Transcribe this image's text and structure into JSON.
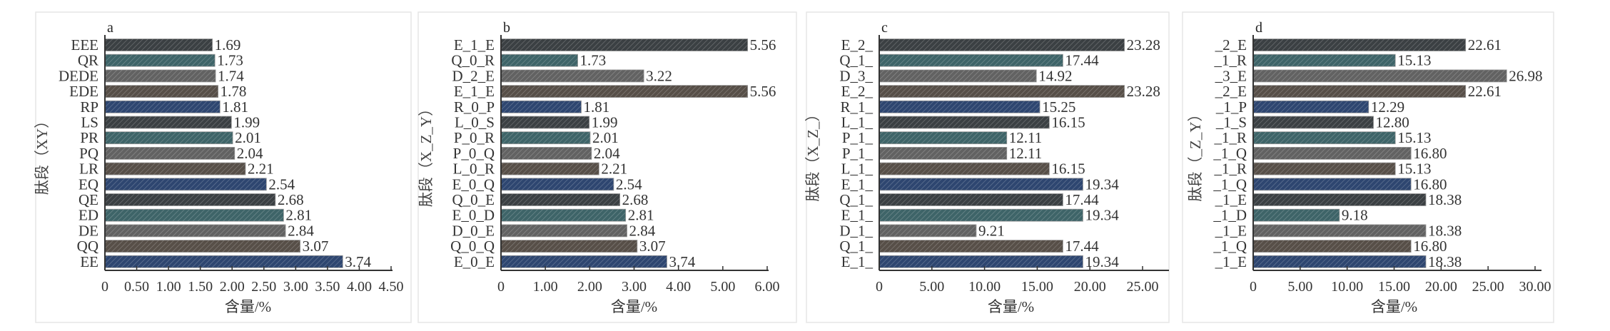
{
  "colors": [
    "#3b4043",
    "#3e6468",
    "#626262",
    "#574f48",
    "#2e4670"
  ],
  "chart_data": [
    {
      "type": "bar",
      "orientation": "horizontal",
      "panel": "a",
      "ylabel": "肽段（XY）",
      "xlabel": "含量/%",
      "xlim": [
        0,
        4.5
      ],
      "ticks": [
        "0",
        "0.50",
        "1.00",
        "1.50",
        "2.00",
        "2.50",
        "3.00",
        "3.50",
        "4.00",
        "4.50"
      ],
      "tick_values": [
        0,
        0.5,
        1,
        1.5,
        2,
        2.5,
        3,
        3.5,
        4,
        4.5
      ],
      "categories": [
        "EEE",
        "QR",
        "DEDE",
        "EDE",
        "RP",
        "LS",
        "PR",
        "PQ",
        "LR",
        "EQ",
        "QE",
        "ED",
        "DE",
        "QQ",
        "EE"
      ],
      "values": [
        1.69,
        1.73,
        1.74,
        1.78,
        1.81,
        1.99,
        2.01,
        2.04,
        2.21,
        2.54,
        2.68,
        2.81,
        2.84,
        3.07,
        3.74
      ],
      "labels": [
        "1.69",
        "1.73",
        "1.74",
        "1.78",
        "1.81",
        "1.99",
        "2.01",
        "2.04",
        "2.21",
        "2.54",
        "2.68",
        "2.81",
        "2.84",
        "3.07",
        "3.74"
      ]
    },
    {
      "type": "bar",
      "orientation": "horizontal",
      "panel": "b",
      "ylabel": "肽段（X_Z_Y）",
      "xlabel": "含量/%",
      "xlim": [
        0,
        6
      ],
      "ticks": [
        "0",
        "1.00",
        "2.00",
        "3.00",
        "4.00",
        "5.00",
        "6.00"
      ],
      "tick_values": [
        0,
        1,
        2,
        3,
        4,
        5,
        6
      ],
      "categories": [
        "E_1_E",
        "Q_0_R",
        "D_2_E",
        "E_1_E",
        "R_0_P",
        "L_0_S",
        "P_0_R",
        "P_0_Q",
        "L_0_R",
        "E_0_Q",
        "Q_0_E",
        "E_0_D",
        "D_0_E",
        "Q_0_Q",
        "E_0_E"
      ],
      "values": [
        5.56,
        1.73,
        3.22,
        5.56,
        1.81,
        1.99,
        2.01,
        2.04,
        2.21,
        2.54,
        2.68,
        2.81,
        2.84,
        3.07,
        3.74
      ],
      "labels": [
        "5.56",
        "1.73",
        "3.22",
        "5.56",
        "1.81",
        "1.99",
        "2.01",
        "2.04",
        "2.21",
        "2.54",
        "2.68",
        "2.81",
        "2.84",
        "3.07",
        "3.74"
      ]
    },
    {
      "type": "bar",
      "orientation": "horizontal",
      "panel": "c",
      "ylabel": "肽段（X_Z_）",
      "xlabel": "含量/%",
      "xlim": [
        0,
        25
      ],
      "ticks": [
        "0",
        "5.00",
        "10.00",
        "15.00",
        "20.00",
        "25.00"
      ],
      "tick_values": [
        0,
        5,
        10,
        15,
        20,
        25
      ],
      "categories": [
        "E_2_",
        "Q_1_",
        "D_3_",
        "E_2_",
        "R_1_",
        "L_1_",
        "P_1_",
        "P_1_",
        "L_1_",
        "E_1_",
        "Q_1_",
        "E_1_",
        "D_1_",
        "Q_1_",
        "E_1_"
      ],
      "values": [
        23.28,
        17.44,
        14.92,
        23.28,
        15.25,
        16.15,
        12.11,
        12.11,
        16.15,
        19.34,
        17.44,
        19.34,
        9.21,
        17.44,
        19.34
      ],
      "labels": [
        "23.28",
        "17.44",
        "14.92",
        "23.28",
        "15.25",
        "16.15",
        "12.11",
        "12.11",
        "16.15",
        "19.34",
        "17.44",
        "19.34",
        "9.21",
        "17.44",
        "19.34"
      ]
    },
    {
      "type": "bar",
      "orientation": "horizontal",
      "panel": "d",
      "ylabel": "肽段（_Z_Y）",
      "xlabel": "含量/%",
      "xlim": [
        0,
        30
      ],
      "ticks": [
        "0",
        "5.00",
        "10.00",
        "15.00",
        "20.00",
        "25.00",
        "30.00"
      ],
      "tick_values": [
        0,
        5,
        10,
        15,
        20,
        25,
        30
      ],
      "categories": [
        "_2_E",
        "_1_R",
        "_3_E",
        "_2_E",
        "_1_P",
        "_1_S",
        "_1_R",
        "_1_Q",
        "_1_R",
        "_1_Q",
        "_1_E",
        "_1_D",
        "_1_E",
        "_1_Q",
        "_1_E"
      ],
      "values": [
        22.61,
        15.13,
        26.98,
        22.61,
        12.29,
        12.8,
        15.13,
        16.8,
        15.13,
        16.8,
        18.38,
        9.18,
        18.38,
        16.8,
        18.38
      ],
      "labels": [
        "22.61",
        "15.13",
        "26.98",
        "22.61",
        "12.29",
        "12.80",
        "15.13",
        "16.80",
        "15.13",
        "16.80",
        "18.38",
        "9.18",
        "18.38",
        "16.80",
        "18.38"
      ]
    }
  ]
}
